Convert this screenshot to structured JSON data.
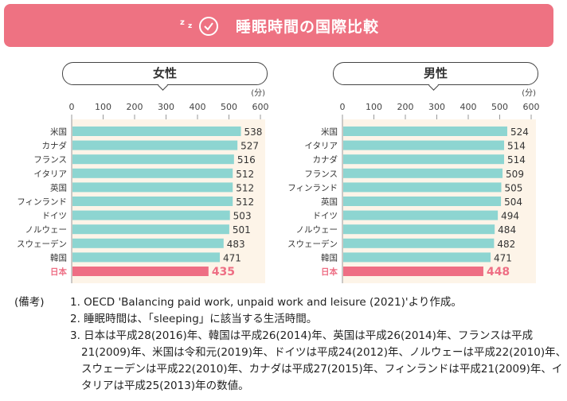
{
  "header": {
    "title": "睡眠時間の国際比較",
    "icon": "sleep-clock-icon",
    "color": "#ee7282"
  },
  "chart_data": [
    {
      "type": "bar",
      "orientation": "horizontal",
      "title": "女性",
      "unit": "(分)",
      "xlim": [
        0,
        600
      ],
      "ticks": [
        "0",
        "100",
        "200",
        "300",
        "400",
        "500",
        "600"
      ],
      "categories": [
        "米国",
        "カナダ",
        "フランス",
        "イタリア",
        "英国",
        "フィンランド",
        "ドイツ",
        "ノルウェー",
        "スウェーデン",
        "韓国",
        "日本"
      ],
      "values": [
        538,
        527,
        516,
        512,
        512,
        512,
        503,
        501,
        483,
        471,
        435
      ],
      "highlight": "日本"
    },
    {
      "type": "bar",
      "orientation": "horizontal",
      "title": "男性",
      "unit": "(分)",
      "xlim": [
        0,
        600
      ],
      "ticks": [
        "0",
        "100",
        "200",
        "300",
        "400",
        "500",
        "600"
      ],
      "categories": [
        "米国",
        "イタリア",
        "カナダ",
        "フランス",
        "フィンランド",
        "英国",
        "ドイツ",
        "ノルウェー",
        "スウェーデン",
        "韓国",
        "日本"
      ],
      "values": [
        524,
        514,
        514,
        509,
        505,
        504,
        494,
        484,
        482,
        471,
        448
      ],
      "highlight": "日本"
    }
  ],
  "colors": {
    "bar": "#8dd5d1",
    "highlight": "#ee6e84",
    "plot_bg": "#fdf4e8"
  },
  "notes": {
    "label": "(備考)",
    "items": [
      "1. OECD 'Balancing paid work, unpaid work and leisure (2021)'より作成。",
      "2. 睡眠時間は、「sleeping」に該当する生活時間。",
      "3. 日本は平成28(2016)年、韓国は平成26(2014)年、英国は平成26(2014)年、フランスは平成21(2009)年、米国は令和元(2019)年、ドイツは平成24(2012)年、ノルウェーは平成22(2010)年、スウェーデンは平成22(2010)年、カナダは平成27(2015)年、フィンランドは平成21(2009)年、イタリアは平成25(2013)年の数値。"
    ]
  }
}
